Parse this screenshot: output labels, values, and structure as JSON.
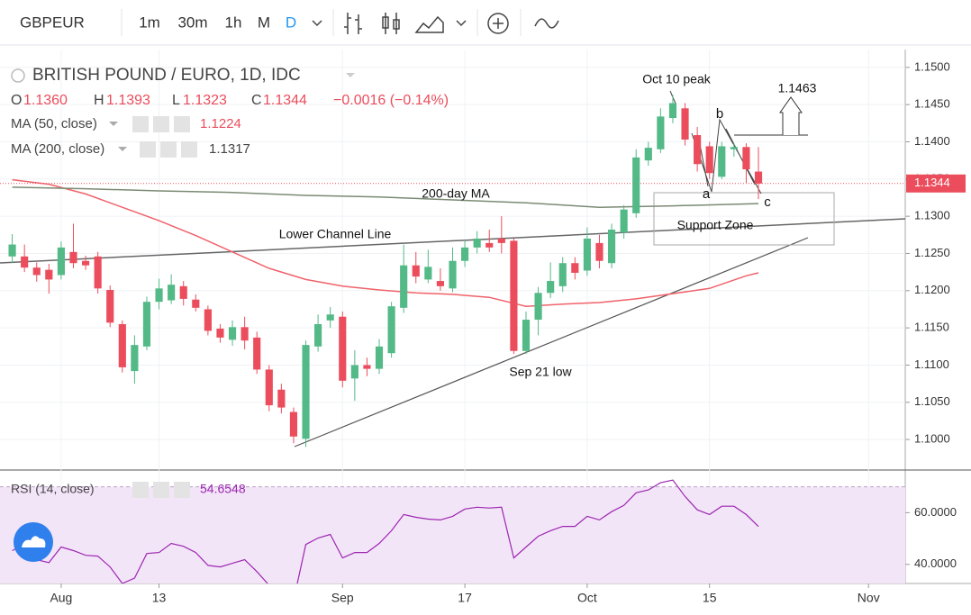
{
  "toolbar": {
    "symbol": "GBPEUR",
    "intervals": [
      "1m",
      "30m",
      "1h",
      "M",
      "D"
    ]
  },
  "chart_data": [
    {
      "type": "candlestick",
      "title": "BRITISH POUND / EURO, 1D, IDC",
      "ohlc_legend": [
        {
          "key": "O",
          "value": "1.1360"
        },
        {
          "key": "H",
          "value": "1.1393"
        },
        {
          "key": "L",
          "value": "1.1323"
        },
        {
          "key": "C",
          "value": "1.1344"
        }
      ],
      "change_label": "−0.0016 (−0.14%)",
      "up_color": "#53b987",
      "down_color": "#eb4d5c",
      "x": [
        0,
        1,
        2,
        3,
        4,
        5,
        6,
        7,
        8,
        9,
        10,
        11,
        12,
        13,
        14,
        15,
        16,
        17,
        18,
        19,
        20,
        21,
        22,
        23,
        24,
        25,
        26,
        27,
        28,
        29,
        30,
        31,
        32,
        33,
        34,
        35,
        36,
        37,
        38,
        39,
        40,
        41,
        42,
        43,
        44,
        45,
        46,
        47,
        48,
        49,
        50,
        51,
        52,
        53,
        54,
        55,
        56,
        57,
        58,
        59,
        60,
        61
      ],
      "open": [
        1.1246,
        1.1246,
        1.1231,
        1.1228,
        1.1221,
        1.1252,
        1.124,
        1.1246,
        1.1201,
        1.1155,
        1.1092,
        1.1125,
        1.1185,
        1.1187,
        1.1206,
        1.1188,
        1.1175,
        1.1149,
        1.1134,
        1.1151,
        1.1137,
        1.1094,
        1.1067,
        1.1037,
        1.1001,
        1.1125,
        1.116,
        1.1165,
        1.1082,
        1.11,
        1.1095,
        1.1116,
        1.1177,
        1.1234,
        1.1215,
        1.1213,
        1.1203,
        1.124,
        1.1258,
        1.1264,
        1.127,
        1.1267,
        1.1119,
        1.1161,
        1.1197,
        1.1206,
        1.1237,
        1.1227,
        1.1264,
        1.1237,
        1.1278,
        1.1304,
        1.1375,
        1.139,
        1.1432,
        1.1445,
        1.1409,
        1.1394,
        1.1353,
        1.139,
        1.1393,
        1.136
      ],
      "high": [
        1.1276,
        1.1262,
        1.1238,
        1.1236,
        1.1266,
        1.129,
        1.1247,
        1.1252,
        1.1207,
        1.116,
        1.114,
        1.1192,
        1.1216,
        1.1222,
        1.1213,
        1.1195,
        1.118,
        1.1155,
        1.116,
        1.1165,
        1.1145,
        1.11,
        1.1075,
        1.1043,
        1.1133,
        1.1168,
        1.1178,
        1.1172,
        1.112,
        1.111,
        1.1135,
        1.1185,
        1.1262,
        1.1252,
        1.1255,
        1.123,
        1.1258,
        1.1268,
        1.128,
        1.1282,
        1.13,
        1.127,
        1.1172,
        1.1205,
        1.1238,
        1.1245,
        1.1245,
        1.1285,
        1.1275,
        1.129,
        1.1315,
        1.139,
        1.14,
        1.1445,
        1.1463,
        1.1452,
        1.142,
        1.14,
        1.14,
        1.1398,
        1.1398,
        1.1393
      ],
      "low": [
        1.1237,
        1.1225,
        1.1212,
        1.1196,
        1.1215,
        1.123,
        1.1228,
        1.1196,
        1.1151,
        1.109,
        1.1075,
        1.112,
        1.1175,
        1.1182,
        1.118,
        1.1172,
        1.114,
        1.113,
        1.1126,
        1.1121,
        1.1088,
        1.1038,
        1.1035,
        1.0995,
        1.099,
        1.1118,
        1.115,
        1.107,
        1.1052,
        1.1085,
        1.1088,
        1.111,
        1.117,
        1.121,
        1.121,
        1.12,
        1.1198,
        1.1232,
        1.125,
        1.1252,
        1.125,
        1.1115,
        1.1115,
        1.114,
        1.119,
        1.1198,
        1.1215,
        1.122,
        1.123,
        1.123,
        1.127,
        1.1298,
        1.1368,
        1.1385,
        1.1425,
        1.1395,
        1.136,
        1.135,
        1.135,
        1.138,
        1.1345,
        1.1323
      ],
      "close": [
        1.1262,
        1.1231,
        1.1221,
        1.1215,
        1.1258,
        1.1237,
        1.1234,
        1.1203,
        1.1157,
        1.1097,
        1.1127,
        1.1185,
        1.1203,
        1.1208,
        1.1189,
        1.1177,
        1.1146,
        1.1137,
        1.1151,
        1.1133,
        1.1094,
        1.1046,
        1.1043,
        1.1004,
        1.1127,
        1.1155,
        1.1168,
        1.1079,
        1.11,
        1.1095,
        1.1125,
        1.1179,
        1.1234,
        1.1219,
        1.1232,
        1.1206,
        1.124,
        1.1258,
        1.127,
        1.1258,
        1.1264,
        1.1119,
        1.1161,
        1.1197,
        1.1213,
        1.1237,
        1.1224,
        1.127,
        1.124,
        1.1282,
        1.1309,
        1.1379,
        1.1392,
        1.1434,
        1.1452,
        1.1403,
        1.137,
        1.1358,
        1.1394,
        1.1393,
        1.1363,
        1.1344
      ],
      "overlays": [
        {
          "name": "MA (50, close)",
          "color": "#f0626a",
          "value_label": "1.1224",
          "x": [
            0,
            3,
            6,
            9,
            12,
            15,
            18,
            21,
            24,
            27,
            30,
            33,
            36,
            39,
            42,
            45,
            48,
            51,
            54,
            57,
            60,
            61
          ],
          "values": [
            1.1349,
            1.1343,
            1.133,
            1.1312,
            1.1294,
            1.1274,
            1.1252,
            1.123,
            1.1215,
            1.1206,
            1.1201,
            1.1197,
            1.1195,
            1.1191,
            1.1179,
            1.1182,
            1.1184,
            1.1189,
            1.1196,
            1.1203,
            1.122,
            1.1224
          ]
        },
        {
          "name": "MA (200, close)",
          "color": "#7b8a74",
          "value_label": "1.1317",
          "x": [
            0,
            6,
            12,
            18,
            24,
            30,
            36,
            42,
            48,
            54,
            61
          ],
          "values": [
            1.1339,
            1.1337,
            1.1334,
            1.1332,
            1.1328,
            1.1326,
            1.1322,
            1.1318,
            1.1312,
            1.1314,
            1.1317
          ]
        }
      ],
      "last_price": {
        "value": 1.1344,
        "label": "1.1344"
      },
      "xlim": [
        -1,
        73
      ],
      "xticks": [
        {
          "value": 4,
          "label": "Aug"
        },
        {
          "value": 12,
          "label": "13"
        },
        {
          "value": 27,
          "label": "Sep"
        },
        {
          "value": 37,
          "label": "17"
        },
        {
          "value": 47,
          "label": "Oct"
        },
        {
          "value": 57,
          "label": "15"
        },
        {
          "value": 70,
          "label": "Nov"
        }
      ],
      "ylim": [
        1.0959,
        1.1524
      ],
      "yticks": [
        {
          "value": 1.1,
          "label": "1.1000"
        },
        {
          "value": 1.105,
          "label": "1.1050"
        },
        {
          "value": 1.11,
          "label": "1.1100"
        },
        {
          "value": 1.115,
          "label": "1.1150"
        },
        {
          "value": 1.12,
          "label": "1.1200"
        },
        {
          "value": 1.125,
          "label": "1.1250"
        },
        {
          "value": 1.13,
          "label": "1.1300"
        },
        {
          "value": 1.135,
          "label": "1.1350"
        },
        {
          "value": 1.14,
          "label": "1.1400"
        },
        {
          "value": 1.145,
          "label": "1.1450"
        },
        {
          "value": 1.15,
          "label": "1.1500"
        }
      ],
      "grid": true,
      "annotations": [
        "Oct 10 peak",
        "1.1463",
        "b",
        "a",
        "c",
        "200-day MA",
        "Lower Channel Line",
        "Support Zone",
        "Sep 21 low"
      ]
    },
    {
      "type": "line",
      "title": "RSI (14, close)",
      "value_label": "54.6548",
      "color": "#9c27b0",
      "band": [
        30,
        70
      ],
      "band_color": "#f3e5f8",
      "x": [
        0,
        1,
        2,
        3,
        4,
        5,
        6,
        7,
        8,
        9,
        10,
        11,
        12,
        13,
        14,
        15,
        16,
        17,
        18,
        19,
        20,
        21,
        22,
        23,
        24,
        25,
        26,
        27,
        28,
        29,
        30,
        31,
        32,
        33,
        34,
        35,
        36,
        37,
        38,
        39,
        40,
        41,
        42,
        43,
        44,
        45,
        46,
        47,
        48,
        49,
        50,
        51,
        52,
        53,
        54,
        55,
        56,
        57,
        58,
        59,
        60,
        61
      ],
      "values": [
        45.3,
        47.7,
        41.8,
        40.7,
        46.7,
        45.3,
        43.5,
        43.2,
        39.0,
        32.6,
        34.7,
        44.2,
        44.6,
        48.1,
        47.0,
        44.6,
        39.6,
        39.0,
        40.4,
        41.8,
        37.2,
        31.9,
        29.5,
        26.0,
        47.7,
        50.2,
        51.6,
        42.5,
        44.6,
        44.6,
        48.1,
        53.0,
        59.3,
        58.2,
        57.5,
        57.2,
        58.6,
        61.4,
        62.1,
        61.8,
        62.1,
        42.5,
        46.7,
        50.9,
        53.0,
        54.7,
        54.7,
        58.6,
        57.2,
        60.4,
        62.8,
        67.7,
        68.8,
        71.6,
        72.6,
        66.3,
        61.1,
        59.3,
        62.5,
        62.5,
        59.3,
        54.6548
      ],
      "xlim": [
        -1,
        73
      ],
      "ylim": [
        32.6,
        75.8
      ],
      "yticks": [
        {
          "value": 40,
          "label": "40.0000"
        },
        {
          "value": 60,
          "label": "60.0000"
        }
      ]
    }
  ]
}
